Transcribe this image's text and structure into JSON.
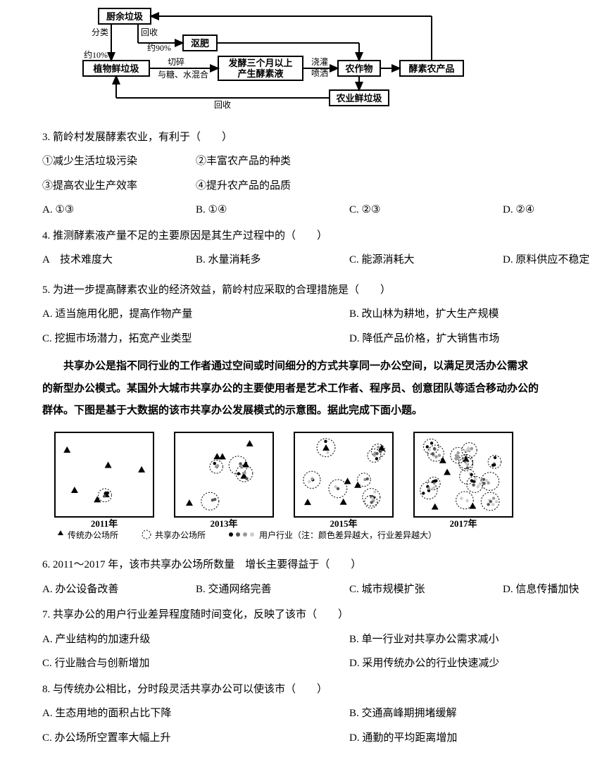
{
  "flow": {
    "nodes": {
      "kitchen": "厨余垃圾",
      "compost": "沤肥",
      "plant": "植物鲜垃圾",
      "ferment": "发酵三个月以上\n产生酵素液",
      "crops": "农作物",
      "product": "酵素农产品",
      "agri": "农业鲜垃圾"
    },
    "labels": {
      "classify": "分类",
      "recycle1": "回收",
      "about90": "约90%",
      "about10": "约10%",
      "chop": "切碎",
      "mix": "与糖、水混合",
      "spray1": "浇灌",
      "spray2": "喷洒",
      "recycle2": "回收"
    },
    "node_border": "#000000",
    "node_bg": "#ffffff",
    "font_weight": "bold",
    "line_width": 2
  },
  "q3": {
    "stem": "3. 箭岭村发展酵素农业，有利于（　　）",
    "s1": "①减少生活垃圾污染",
    "s2": "②丰富农产品的种类",
    "s3": "③提高农业生产效率",
    "s4": "④提升农产品的品质",
    "A": "A. ①③",
    "B": "B. ①④",
    "C": "C. ②③",
    "D": "D. ②④"
  },
  "q4": {
    "stem": "4. 推测酵素液产量不足的主要原因是其生产过程中的（　　）",
    "A": "A　技术难度大",
    "B": "B. 水量消耗多",
    "C": "C. 能源消耗大",
    "D": "D. 原料供应不稳定"
  },
  "q5": {
    "stem": "5. 为进一步提高酵素农业的经济效益，箭岭村应采取的合理措施是（　　）",
    "A": "A. 适当施用化肥，提高作物产量",
    "B": "B. 改山林为耕地，扩大生产规模",
    "C": "C. 挖掘市场潜力，拓宽产业类型",
    "D": "D. 降低产品价格，扩大销售市场"
  },
  "passage2": {
    "p1": "共享办公是指不同行业的工作者通过空间或时间细分的方式共享同一办公空间，以满足灵活办公需求",
    "p2": "的新型办公模式。某国外大城市共享办公的主要使用者是艺术工作者、程序员、创意团队等适合移动办公的",
    "p3": "群体。下图是基于大数据的该市共享办公发展模式的示意图。据此完成下面小题。"
  },
  "fig2": {
    "years": [
      "2011年",
      "2013年",
      "2015年",
      "2017年"
    ],
    "legend": {
      "tri": "传统办公场所",
      "circ": "共享办公场所",
      "user": "用户行业（注：颜色差异越大，行业差异越大）"
    },
    "panel_border": "#000000",
    "panel_bg": "#ffffff",
    "marker_color": "#000000",
    "user_colors": [
      "#000000",
      "#555555",
      "#999999",
      "#cccccc"
    ]
  },
  "q6": {
    "stem": "6. 2011～2017 年，该市共享办公场所数量　增长主要得益于（　　）",
    "A": "A. 办公设备改善",
    "B": "B. 交通网络完善",
    "C": "C. 城市规模扩张",
    "D": "D. 信息传播加快"
  },
  "q7": {
    "stem": "7. 共享办公的用户行业差异程度随时间变化，反映了该市（　　）",
    "A": "A. 产业结构的加速升级",
    "B": "B. 单一行业对共享办公需求减小",
    "C": "C. 行业融合与创新增加",
    "D": "D. 采用传统办公的行业快速减少"
  },
  "q8": {
    "stem": "8. 与传统办公相比，分时段灵活共享办公可以使该市（　　）",
    "A": "A. 生态用地的面积占比下降",
    "B": "B. 交通高峰期拥堵缓解",
    "C": "C. 办公场所空置率大幅上升",
    "D": "D. 通勤的平均距离增加"
  }
}
